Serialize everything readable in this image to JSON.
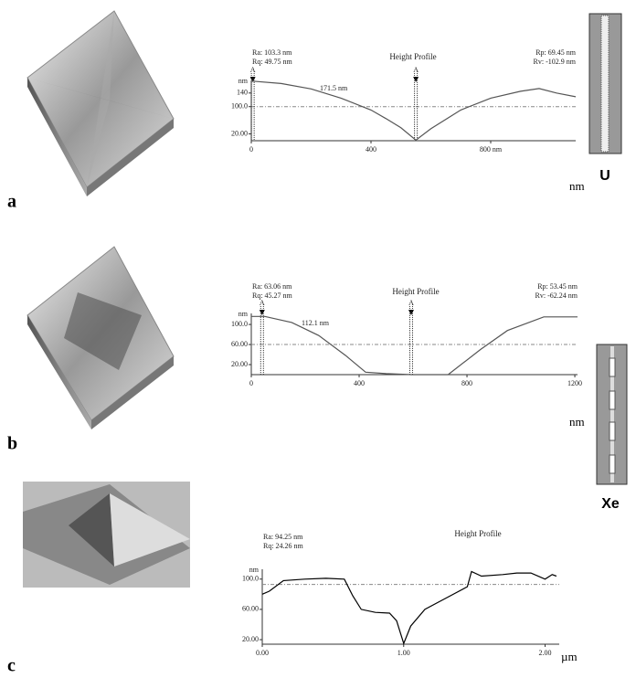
{
  "panels": [
    "a",
    "b",
    "c"
  ],
  "rods": [
    {
      "label": "U"
    },
    {
      "label": "Xe"
    }
  ],
  "chart_data": [
    {
      "type": "line",
      "title": "Height Profile",
      "stats_left": [
        "Ra: 103.3 nm",
        "Rq: 49.75 nm"
      ],
      "stats_right": [
        "Rp: 69.45 nm",
        "Rv: -102.9 nm"
      ],
      "annotation": "171.5 nm",
      "y_unit": "nm",
      "x_unit": "nm",
      "cursor_label": "A",
      "cursors": [
        5,
        550
      ],
      "ref_y": 100,
      "color": "#555555",
      "x": [
        0,
        100,
        200,
        300,
        400,
        450,
        500,
        550,
        600,
        700,
        800,
        900,
        962,
        1020,
        1084
      ],
      "values": [
        175,
        168,
        152,
        125,
        90,
        65,
        38,
        2,
        35,
        90,
        125,
        145,
        153,
        140,
        129
      ],
      "xlim": [
        0,
        1084
      ],
      "ylim": [
        0,
        177
      ],
      "xticks": [
        0,
        400,
        {
          "value": 800,
          "label": "800 nm"
        }
      ],
      "yticks": [
        {
          "value": 20,
          "label": "20.00"
        },
        {
          "value": 100,
          "label": "100.0"
        },
        140
      ]
    },
    {
      "type": "line",
      "title": "Height Profile",
      "stats_left": [
        "Ra: 63.06 nm",
        "Rq: 45.27 nm"
      ],
      "stats_right": [
        "Rp: 53.45 nm",
        "Rv: -62.24 nm"
      ],
      "annotation": "112.1 nm",
      "y_unit": "nm",
      "x_unit": "nm",
      "cursor_label": "A",
      "cursors": [
        40,
        593
      ],
      "ref_y": 60,
      "color": "#555555",
      "x": [
        0,
        50,
        150,
        250,
        350,
        424,
        500,
        593,
        730,
        850,
        950,
        1085,
        1210
      ],
      "values": [
        116,
        116,
        104,
        78,
        38,
        5,
        2,
        0,
        0,
        50,
        88,
        115,
        115
      ],
      "xlim": [
        0,
        1210
      ],
      "ylim": [
        0,
        122
      ],
      "xticks": [
        0,
        400,
        800,
        1200
      ],
      "yticks": [
        {
          "value": 20,
          "label": "20.00"
        },
        {
          "value": 60,
          "label": "60.00"
        },
        {
          "value": 100,
          "label": "100.0"
        }
      ]
    },
    {
      "type": "line",
      "title": "Height Profile",
      "stats_left": [
        "Ra: 94.25 nm",
        "Rq: 24.26 nm"
      ],
      "stats_right": [],
      "y_unit": "nm",
      "x_unit": "µm",
      "ref_y": 93,
      "color": "#000000",
      "x": [
        0,
        0.05,
        0.15,
        0.3,
        0.45,
        0.58,
        0.64,
        0.7,
        0.8,
        0.9,
        0.95,
        1.0,
        1.05,
        1.15,
        1.3,
        1.45,
        1.48,
        1.55,
        1.7,
        1.8,
        1.9,
        2.0,
        2.05,
        2.08
      ],
      "values": [
        80,
        84,
        98,
        100,
        101,
        100,
        78,
        60,
        56,
        55,
        45,
        15,
        38,
        60,
        75,
        90,
        110,
        104,
        106,
        108,
        108,
        100,
        106,
        104
      ],
      "xlim": [
        0,
        2.1
      ],
      "ylim": [
        14,
        113
      ],
      "xticks": [
        {
          "value": 0,
          "label": "0.00"
        },
        {
          "value": 1,
          "label": "1.00"
        },
        {
          "value": 2,
          "label": "2.00"
        }
      ],
      "yticks": [
        {
          "value": 20,
          "label": "20.00"
        },
        {
          "value": 60,
          "label": "60.00"
        },
        {
          "value": 100,
          "label": "100.0"
        }
      ]
    }
  ]
}
